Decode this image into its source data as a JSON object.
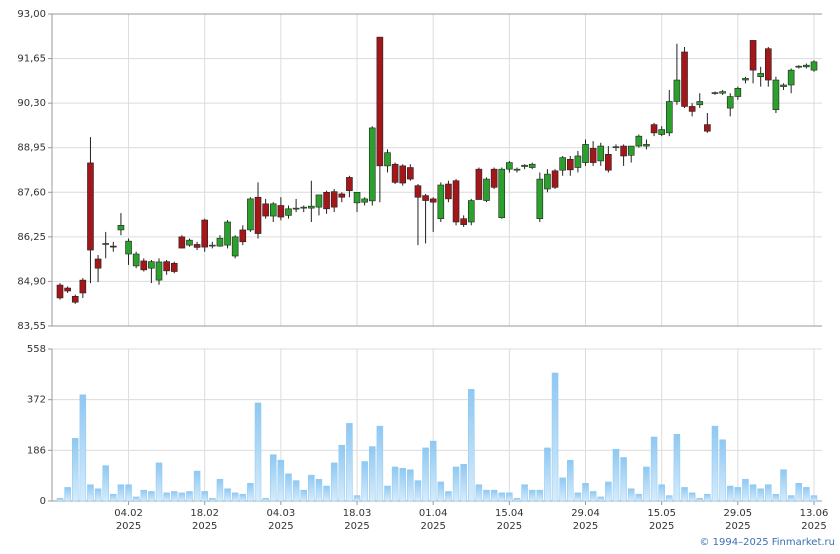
{
  "chart_data": {
    "type": "candlestick",
    "grid": true,
    "up_color": "#2ca02c",
    "down_color": "#a3161a",
    "volume_color": "#8ec8f2",
    "categories": [
      null,
      null,
      null,
      null,
      null,
      null,
      null,
      null,
      null,
      "04.02",
      null,
      null,
      null,
      null,
      null,
      null,
      null,
      null,
      null,
      "18.02",
      null,
      null,
      null,
      null,
      null,
      null,
      null,
      null,
      null,
      "04.03",
      null,
      null,
      null,
      null,
      null,
      null,
      null,
      null,
      null,
      "18.03",
      null,
      null,
      null,
      null,
      null,
      null,
      null,
      null,
      null,
      "01.04",
      null,
      null,
      null,
      null,
      null,
      null,
      null,
      null,
      null,
      "15.04",
      null,
      null,
      null,
      null,
      null,
      null,
      null,
      null,
      null,
      "29.04",
      null,
      null,
      null,
      null,
      null,
      null,
      null,
      null,
      null,
      "15.05",
      null,
      null,
      null,
      null,
      null,
      null,
      null,
      null,
      null,
      "29.05",
      null,
      null,
      null,
      null,
      null,
      null,
      null,
      null,
      null,
      "13.06"
    ],
    "category_years": [
      null,
      null,
      null,
      null,
      null,
      null,
      null,
      null,
      null,
      "2025",
      null,
      null,
      null,
      null,
      null,
      null,
      null,
      null,
      null,
      "2025",
      null,
      null,
      null,
      null,
      null,
      null,
      null,
      null,
      null,
      "2025",
      null,
      null,
      null,
      null,
      null,
      null,
      null,
      null,
      null,
      "2025",
      null,
      null,
      null,
      null,
      null,
      null,
      null,
      null,
      null,
      "2025",
      null,
      null,
      null,
      null,
      null,
      null,
      null,
      null,
      null,
      "2025",
      null,
      null,
      null,
      null,
      null,
      null,
      null,
      null,
      null,
      "2025",
      null,
      null,
      null,
      null,
      null,
      null,
      null,
      null,
      null,
      "2025",
      null,
      null,
      null,
      null,
      null,
      null,
      null,
      null,
      null,
      "2025",
      null,
      null,
      null,
      null,
      null,
      null,
      null,
      null,
      null,
      "2025"
    ],
    "open": [
      84.79,
      84.7,
      84.45,
      84.94,
      88.49,
      85.58,
      86.03,
      85.97,
      86.46,
      85.73,
      85.37,
      85.52,
      85.3,
      84.94,
      85.5,
      85.45,
      86.25,
      86.0,
      86.02,
      86.76,
      85.97,
      85.97,
      86.0,
      85.67,
      86.46,
      86.46,
      87.45,
      87.25,
      86.88,
      87.2,
      86.9,
      87.1,
      87.12,
      87.12,
      87.15,
      87.6,
      87.62,
      87.55,
      88.05,
      87.28,
      87.3,
      87.34,
      92.3,
      88.4,
      88.45,
      88.4,
      88.35,
      87.8,
      87.5,
      87.4,
      86.8,
      87.85,
      87.95,
      86.8,
      86.7,
      88.3,
      87.35,
      88.3,
      86.83,
      88.3,
      88.28,
      88.38,
      88.35,
      86.8,
      87.7,
      88.25,
      88.27,
      88.6,
      88.35,
      88.5,
      88.93,
      88.55,
      88.75,
      88.95,
      89.0,
      88.72,
      89.0,
      89.0,
      89.65,
      89.35,
      89.4,
      90.35,
      91.85,
      90.2,
      90.25,
      89.65,
      90.6,
      90.6,
      90.15,
      90.5,
      91.0,
      92.2,
      91.1,
      91.95,
      90.1,
      90.8,
      90.85,
      91.4,
      91.4,
      91.3
    ],
    "high": [
      84.85,
      84.75,
      84.5,
      85.0,
      89.27,
      85.7,
      86.4,
      86.1,
      86.97,
      86.2,
      85.8,
      85.6,
      85.55,
      85.6,
      85.55,
      85.5,
      86.3,
      86.2,
      86.1,
      86.8,
      86.1,
      86.3,
      86.76,
      86.3,
      86.6,
      87.45,
      87.9,
      87.4,
      87.3,
      87.45,
      87.2,
      87.4,
      87.2,
      87.95,
      87.5,
      87.65,
      87.7,
      87.6,
      88.1,
      87.6,
      87.45,
      89.6,
      92.3,
      88.9,
      88.5,
      88.45,
      88.45,
      87.85,
      87.55,
      87.45,
      87.9,
      87.95,
      88.0,
      86.9,
      87.4,
      88.35,
      88.05,
      88.35,
      88.35,
      88.55,
      88.35,
      88.45,
      88.5,
      88.2,
      88.3,
      88.3,
      88.7,
      88.7,
      88.85,
      89.2,
      89.15,
      89.1,
      89.0,
      89.05,
      89.05,
      89.0,
      89.35,
      89.2,
      89.7,
      89.6,
      90.7,
      92.1,
      92.0,
      90.3,
      90.6,
      90.0,
      90.65,
      90.7,
      90.6,
      90.8,
      91.1,
      92.2,
      91.4,
      92.0,
      91.1,
      90.9,
      91.35,
      91.45,
      91.5,
      91.6
    ],
    "low": [
      84.35,
      84.55,
      84.22,
      84.4,
      84.85,
      84.88,
      85.6,
      85.8,
      86.3,
      85.4,
      85.3,
      85.2,
      84.85,
      84.8,
      85.1,
      85.15,
      85.9,
      85.95,
      85.85,
      85.8,
      85.9,
      85.95,
      85.9,
      85.6,
      86.0,
      86.4,
      86.2,
      86.8,
      86.7,
      86.75,
      86.8,
      87.0,
      87.0,
      86.7,
      86.9,
      86.95,
      87.0,
      87.3,
      87.45,
      87.0,
      87.2,
      87.2,
      87.3,
      88.2,
      87.85,
      87.8,
      87.95,
      86.0,
      86.05,
      86.4,
      86.7,
      87.3,
      86.6,
      86.55,
      86.6,
      87.4,
      87.3,
      87.7,
      86.8,
      88.2,
      88.2,
      88.3,
      88.3,
      86.7,
      87.6,
      87.7,
      88.1,
      88.1,
      88.2,
      88.4,
      88.4,
      88.4,
      88.2,
      88.85,
      88.4,
      88.5,
      88.95,
      88.9,
      89.3,
      89.3,
      89.3,
      90.25,
      90.15,
      89.9,
      90.15,
      89.4,
      90.55,
      90.55,
      89.9,
      90.4,
      90.9,
      90.9,
      90.8,
      90.8,
      90.0,
      90.7,
      90.6,
      91.35,
      91.35,
      91.25
    ],
    "close": [
      84.4,
      84.61,
      84.27,
      84.55,
      85.85,
      85.3,
      86.05,
      85.95,
      86.6,
      86.12,
      85.73,
      85.25,
      85.5,
      85.49,
      85.22,
      85.2,
      85.91,
      86.15,
      85.93,
      85.94,
      86.0,
      86.21,
      86.7,
      86.25,
      86.1,
      87.4,
      86.35,
      86.88,
      87.25,
      86.85,
      87.1,
      87.12,
      87.15,
      87.18,
      87.52,
      87.1,
      87.15,
      87.45,
      87.65,
      87.6,
      87.4,
      89.55,
      88.4,
      88.8,
      87.9,
      87.88,
      88.0,
      87.45,
      87.35,
      87.3,
      87.82,
      87.4,
      86.7,
      86.62,
      87.35,
      87.38,
      88.0,
      87.75,
      88.3,
      88.5,
      88.3,
      88.42,
      88.45,
      88.0,
      88.15,
      87.75,
      88.65,
      88.28,
      88.7,
      89.05,
      88.5,
      89.0,
      88.27,
      88.98,
      88.7,
      89.0,
      89.3,
      89.05,
      89.4,
      89.5,
      90.35,
      91.0,
      90.2,
      90.05,
      90.35,
      89.45,
      90.62,
      90.65,
      90.5,
      90.75,
      91.05,
      91.3,
      91.2,
      91.0,
      91.0,
      90.85,
      91.3,
      91.42,
      91.45,
      91.55
    ],
    "ylim": [
      83.55,
      93.0
    ],
    "yticks": [
      {
        "value": 83.55,
        "label": "83,55"
      },
      {
        "value": 84.9,
        "label": "84,90"
      },
      {
        "value": 86.25,
        "label": "86,25"
      },
      {
        "value": 87.6,
        "label": "87,60"
      },
      {
        "value": 88.95,
        "label": "88,95"
      },
      {
        "value": 90.3,
        "label": "90,30"
      },
      {
        "value": 91.65,
        "label": "91,65"
      },
      {
        "value": 93.0,
        "label": "93,00"
      }
    ],
    "volume": [
      10,
      50,
      230,
      390,
      60,
      45,
      130,
      25,
      60,
      60,
      15,
      40,
      35,
      140,
      30,
      35,
      30,
      35,
      110,
      35,
      10,
      80,
      45,
      30,
      25,
      65,
      360,
      10,
      170,
      150,
      100,
      75,
      40,
      95,
      80,
      55,
      140,
      205,
      285,
      20,
      145,
      200,
      275,
      55,
      125,
      120,
      115,
      75,
      195,
      220,
      70,
      35,
      125,
      135,
      410,
      60,
      40,
      40,
      30,
      30,
      10,
      60,
      40,
      40,
      195,
      470,
      85,
      150,
      30,
      65,
      35,
      15,
      70,
      190,
      160,
      45,
      25,
      125,
      235,
      60,
      20,
      245,
      50,
      30,
      10,
      25,
      275,
      225,
      55,
      50,
      80,
      60,
      45,
      60,
      25,
      115,
      20,
      65,
      50,
      20
    ],
    "volume_ylim": [
      0,
      558
    ],
    "volume_yticks": [
      0,
      186,
      372,
      558
    ],
    "footer": "© 1994–2025 Finmarket.ru"
  }
}
